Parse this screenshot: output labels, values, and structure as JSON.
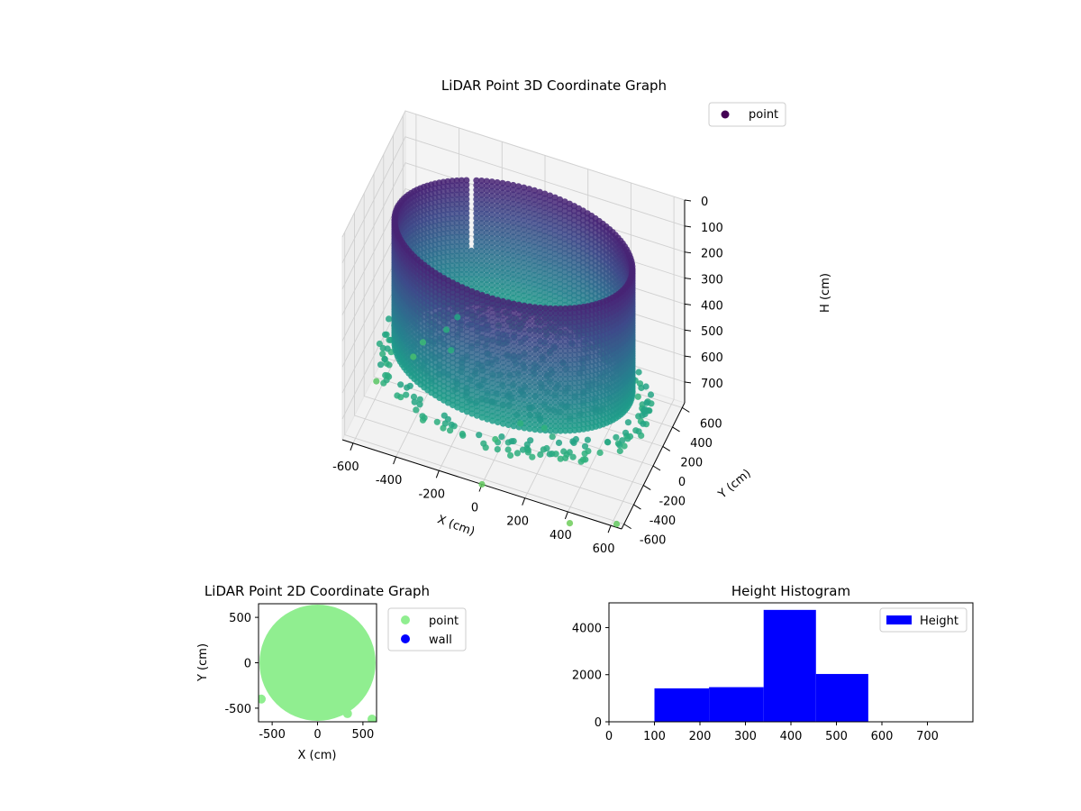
{
  "chart_data": [
    {
      "type": "scatter3d",
      "title": "LiDAR Point 3D Coordinate Graph",
      "xlabel": "X (cm)",
      "ylabel": "Y (cm)",
      "zlabel": "H (cm)",
      "xticks": [
        -600,
        -400,
        -200,
        0,
        200,
        400,
        600
      ],
      "yticks": [
        -600,
        -400,
        -200,
        0,
        200,
        400,
        600
      ],
      "zticks": [
        0,
        100,
        200,
        300,
        400,
        500,
        600,
        700
      ],
      "xlim": [
        -650,
        650
      ],
      "ylim": [
        -650,
        650
      ],
      "zlim": [
        780,
        0
      ],
      "z_inverted": true,
      "legend": [
        {
          "name": "point",
          "color": "#440154"
        }
      ],
      "legend_placement": "top-right",
      "colormap": "viridis",
      "grid": true,
      "structure": {
        "shape": "cylindrical wall",
        "center_cm": [
          0,
          0
        ],
        "radius_cm": 540,
        "wall_top_cm": 100,
        "wall_bottom_cm": 570
      },
      "outliers": [
        {
          "x": -620,
          "y": -80,
          "h": 760
        },
        {
          "x": -500,
          "y": 150,
          "h": 720
        },
        {
          "x": -480,
          "y": 260,
          "h": 700
        },
        {
          "x": -380,
          "y": 300,
          "h": 640
        },
        {
          "x": -340,
          "y": 350,
          "h": 600
        },
        {
          "x": -320,
          "y": 130,
          "h": 640
        },
        {
          "x": 10,
          "y": -420,
          "h": 690
        },
        {
          "x": 100,
          "y": -300,
          "h": 650
        },
        {
          "x": 200,
          "y": -250,
          "h": 660
        },
        {
          "x": 260,
          "y": -350,
          "h": 640
        },
        {
          "x": 350,
          "y": -480,
          "h": 650
        },
        {
          "x": 420,
          "y": -420,
          "h": 660
        },
        {
          "x": 0,
          "y": -650,
          "h": 780
        },
        {
          "x": 420,
          "y": -700,
          "h": 800
        },
        {
          "x": 620,
          "y": -620,
          "h": 780
        }
      ]
    },
    {
      "type": "scatter",
      "title": "LiDAR Point 2D Coordinate Graph",
      "xlabel": "X (cm)",
      "ylabel": "Y (cm)",
      "xticks": [
        -500,
        0,
        500
      ],
      "yticks": [
        -500,
        0,
        500
      ],
      "xlim": [
        -650,
        650
      ],
      "ylim": [
        -650,
        650
      ],
      "series": [
        {
          "name": "point",
          "color": "#90ee90",
          "shape": "filled disc",
          "center": [
            0,
            0
          ],
          "radius": 600,
          "extra_points": [
            [
              -620,
              -400
            ],
            [
              600,
              -620
            ],
            [
              330,
              -560
            ]
          ]
        },
        {
          "name": "wall",
          "color": "#0000ff",
          "points": []
        }
      ],
      "legend_placement": "outside-right"
    },
    {
      "type": "bar",
      "title": "Height Histogram",
      "xticks": [
        0,
        100,
        200,
        300,
        400,
        500,
        600,
        700
      ],
      "yticks": [
        0,
        2000,
        4000
      ],
      "xlim": [
        0,
        800
      ],
      "ylim": [
        0,
        5050
      ],
      "series": [
        {
          "name": "Height",
          "color": "#0000ff",
          "bins": [
            [
              100,
              220
            ],
            [
              220,
              340
            ],
            [
              340,
              455
            ],
            [
              455,
              570
            ]
          ],
          "values": [
            1420,
            1470,
            4750,
            2030
          ]
        }
      ],
      "legend_placement": "top-right"
    }
  ]
}
